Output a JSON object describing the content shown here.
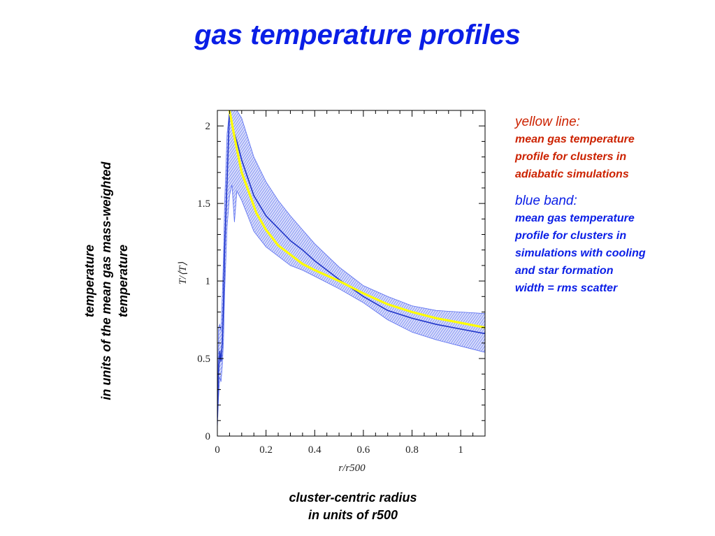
{
  "slide": {
    "title": "gas temperature profiles",
    "y_description": [
      "temperature",
      "in units of the mean gas mass-weighted",
      "temperature"
    ],
    "x_description": [
      "cluster-centric radius",
      "in units of r500"
    ]
  },
  "legend": {
    "yellow": {
      "heading": "yellow line:",
      "lines": [
        "mean gas temperature",
        "profile for clusters in",
        "adiabatic simulations"
      ],
      "color": "#cc2200"
    },
    "blue": {
      "heading": "blue band:",
      "lines": [
        "mean gas temperature",
        "profile for clusters in",
        "simulations with cooling",
        "and star formation",
        "width = rms scatter"
      ],
      "color": "#0a1ee6"
    }
  },
  "colors": {
    "band": "#5a6ef0",
    "blue_line": "#2035c8",
    "yellow_line": "#ffff00"
  },
  "chart_data": {
    "type": "line",
    "xlabel": "r/r500",
    "ylabel": "T/⟨T⟩",
    "xlim": [
      0,
      1.1
    ],
    "ylim": [
      0,
      2.1
    ],
    "x_ticks": [
      "0",
      "0.2",
      "0.4",
      "0.6",
      "0.8",
      "1"
    ],
    "y_ticks": [
      "0",
      "0.5",
      "1",
      "1.5",
      "2"
    ],
    "grid": false,
    "series": [
      {
        "name": "yellow line",
        "role": "adiabatic",
        "x": [
          0.05,
          0.07,
          0.1,
          0.13,
          0.16,
          0.2,
          0.25,
          0.3,
          0.35,
          0.4,
          0.5,
          0.6,
          0.7,
          0.8,
          0.9,
          1.0,
          1.1
        ],
        "y": [
          2.1,
          1.93,
          1.7,
          1.57,
          1.44,
          1.33,
          1.23,
          1.17,
          1.11,
          1.07,
          1.0,
          0.92,
          0.85,
          0.8,
          0.76,
          0.73,
          0.7
        ]
      },
      {
        "name": "blue band",
        "role": "cooling + star formation mean",
        "x": [
          0.0,
          0.005,
          0.01,
          0.015,
          0.02,
          0.025,
          0.03,
          0.04,
          0.05,
          0.06,
          0.07,
          0.08,
          0.1,
          0.15,
          0.2,
          0.25,
          0.3,
          0.35,
          0.4,
          0.5,
          0.6,
          0.7,
          0.8,
          0.9,
          1.0,
          1.1
        ],
        "y": [
          0.12,
          0.42,
          0.55,
          0.48,
          0.6,
          0.85,
          1.2,
          1.65,
          2.1,
          2.0,
          1.95,
          1.9,
          1.78,
          1.55,
          1.42,
          1.34,
          1.26,
          1.2,
          1.13,
          1.01,
          0.9,
          0.81,
          0.76,
          0.72,
          0.69,
          0.66
        ],
        "upper": [
          0.2,
          0.7,
          0.72,
          0.68,
          0.9,
          1.15,
          1.5,
          1.95,
          2.1,
          2.1,
          2.1,
          2.1,
          2.05,
          1.8,
          1.64,
          1.52,
          1.42,
          1.33,
          1.24,
          1.09,
          0.97,
          0.9,
          0.84,
          0.81,
          0.8,
          0.79
        ],
        "lower": [
          0.05,
          0.25,
          0.38,
          0.35,
          0.45,
          0.6,
          0.92,
          1.35,
          1.55,
          1.62,
          1.38,
          1.58,
          1.52,
          1.32,
          1.22,
          1.16,
          1.1,
          1.07,
          1.03,
          0.95,
          0.86,
          0.75,
          0.67,
          0.62,
          0.58,
          0.54
        ]
      }
    ]
  }
}
